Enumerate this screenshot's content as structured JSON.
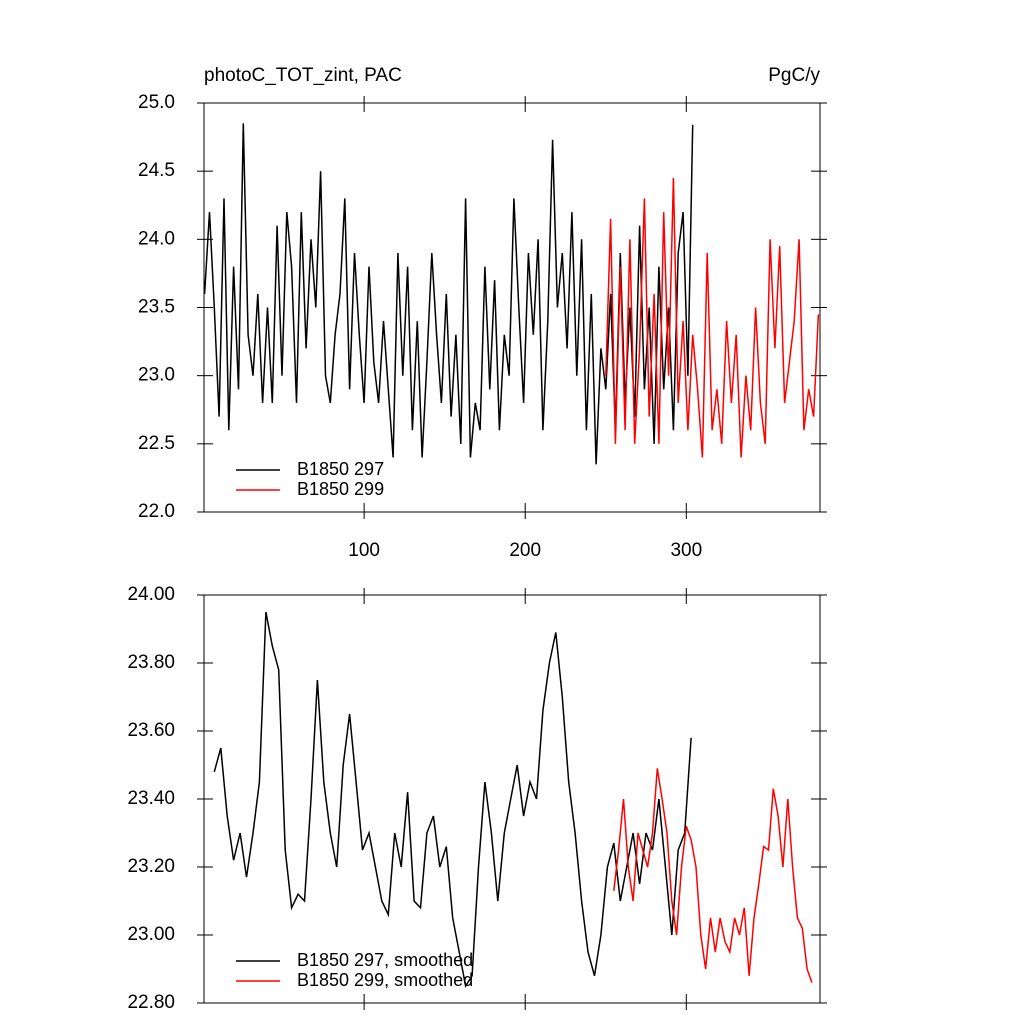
{
  "chart_data": [
    {
      "type": "line",
      "title": "photoC_TOT_zint, PAC",
      "units": "PgC/y",
      "xlim": [
        0.6,
        383
      ],
      "xticks": [
        100,
        200,
        300
      ],
      "xtick_labels": true,
      "ylim": [
        22.0,
        25.0
      ],
      "yticks": [
        {
          "value": 22.0,
          "label": "22.0"
        },
        {
          "value": 22.5,
          "label": "22.5"
        },
        {
          "value": 23.0,
          "label": "23.0"
        },
        {
          "value": 23.5,
          "label": "23.5"
        },
        {
          "value": 24.0,
          "label": "24.0"
        },
        {
          "value": 24.5,
          "label": "24.5"
        },
        {
          "value": 25.0,
          "label": "25.0"
        }
      ],
      "legend": "lower left",
      "series": [
        {
          "name": "B1850 297",
          "color": "#000000",
          "x": [
            1,
            4,
            7,
            10,
            13,
            16,
            19,
            22,
            25,
            28,
            31,
            34,
            37,
            40,
            43,
            46,
            49,
            52,
            55,
            58,
            61,
            64,
            67,
            70,
            73,
            76,
            79,
            82,
            85,
            88,
            91,
            94,
            97,
            100,
            103,
            106,
            109,
            112,
            115,
            118,
            121,
            124,
            127,
            130,
            133,
            136,
            139,
            142,
            145,
            148,
            151,
            154,
            157,
            160,
            163,
            166,
            169,
            172,
            175,
            178,
            181,
            184,
            187,
            190,
            193,
            196,
            199,
            202,
            205,
            208,
            211,
            214,
            217,
            220,
            223,
            226,
            229,
            232,
            235,
            238,
            241,
            244,
            247,
            250,
            253,
            256,
            259,
            262,
            265,
            268,
            271,
            274,
            277,
            280,
            283,
            286,
            289,
            292,
            295,
            298,
            301,
            304
          ],
          "values": [
            23.6,
            24.2,
            23.5,
            22.7,
            24.3,
            22.6,
            23.8,
            22.9,
            24.85,
            23.3,
            23.0,
            23.6,
            22.8,
            23.5,
            22.8,
            24.1,
            23.0,
            24.2,
            23.8,
            22.8,
            24.2,
            23.2,
            24.0,
            23.5,
            24.5,
            23.0,
            22.8,
            23.3,
            23.6,
            24.3,
            22.9,
            23.9,
            23.3,
            22.8,
            23.8,
            23.1,
            22.8,
            23.4,
            22.9,
            22.4,
            23.9,
            23.0,
            23.8,
            22.6,
            23.4,
            22.4,
            23.1,
            23.9,
            23.3,
            22.8,
            23.6,
            22.7,
            23.3,
            22.5,
            24.3,
            22.4,
            22.8,
            22.6,
            23.8,
            22.9,
            23.7,
            22.6,
            23.3,
            23.0,
            24.3,
            23.5,
            22.8,
            23.9,
            23.3,
            24.0,
            22.6,
            23.4,
            24.73,
            23.5,
            23.9,
            23.2,
            24.2,
            23.0,
            24.0,
            22.6,
            23.6,
            22.35,
            23.2,
            22.9,
            23.6,
            22.6,
            23.9,
            22.8,
            23.5,
            22.7,
            24.1,
            22.9,
            23.5,
            22.5,
            23.8,
            22.9,
            23.5,
            22.6,
            23.9,
            24.2,
            23.0,
            24.84
          ]
        },
        {
          "name": "B1850 299",
          "color": "#ff0000",
          "x": [
            250,
            253,
            256,
            259,
            262,
            265,
            268,
            271,
            274,
            277,
            280,
            283,
            286,
            289,
            292,
            295,
            298,
            301,
            304,
            307,
            310,
            313,
            316,
            319,
            322,
            325,
            328,
            331,
            334,
            337,
            340,
            343,
            346,
            349,
            352,
            355,
            358,
            361,
            364,
            367,
            370,
            373,
            376,
            379,
            382
          ],
          "values": [
            23.0,
            24.15,
            22.5,
            23.8,
            22.6,
            24.0,
            22.5,
            23.2,
            24.3,
            22.7,
            23.6,
            22.5,
            24.2,
            23.0,
            24.45,
            22.8,
            23.4,
            22.6,
            23.3,
            22.9,
            22.4,
            23.9,
            22.6,
            22.9,
            22.5,
            23.4,
            22.8,
            23.3,
            22.4,
            23.0,
            22.6,
            23.5,
            22.8,
            22.5,
            24.0,
            23.2,
            23.95,
            22.8,
            23.1,
            23.4,
            24.0,
            22.6,
            22.9,
            22.7,
            23.45
          ]
        }
      ]
    },
    {
      "type": "line",
      "xlim": [
        0.6,
        383
      ],
      "xticks": [
        100,
        200,
        300
      ],
      "xtick_labels": false,
      "ylim": [
        22.8,
        24.0
      ],
      "yticks": [
        {
          "value": 22.8,
          "label": "22.80"
        },
        {
          "value": 23.0,
          "label": "23.00"
        },
        {
          "value": 23.2,
          "label": "23.20"
        },
        {
          "value": 23.4,
          "label": "23.40"
        },
        {
          "value": 23.6,
          "label": "23.60"
        },
        {
          "value": 23.8,
          "label": "23.80"
        },
        {
          "value": 24.0,
          "label": "24.00"
        }
      ],
      "legend": "lower left",
      "series": [
        {
          "name": "B1850 297, smoothed",
          "color": "#000000",
          "x": [
            7,
            11,
            15,
            19,
            23,
            27,
            31,
            35,
            39,
            43,
            47,
            51,
            55,
            59,
            63,
            67,
            71,
            75,
            79,
            83,
            87,
            91,
            95,
            99,
            103,
            107,
            111,
            115,
            119,
            123,
            127,
            131,
            135,
            139,
            143,
            147,
            151,
            155,
            159,
            163,
            167,
            171,
            175,
            179,
            183,
            187,
            191,
            195,
            199,
            203,
            207,
            211,
            215,
            219,
            223,
            227,
            231,
            235,
            239,
            243,
            247,
            251,
            255,
            259,
            263,
            267,
            271,
            275,
            279,
            283,
            287,
            291,
            295,
            299,
            303
          ],
          "values": [
            23.48,
            23.55,
            23.35,
            23.22,
            23.3,
            23.17,
            23.3,
            23.45,
            23.95,
            23.85,
            23.78,
            23.25,
            23.08,
            23.12,
            23.1,
            23.4,
            23.75,
            23.45,
            23.3,
            23.2,
            23.5,
            23.65,
            23.45,
            23.25,
            23.3,
            23.2,
            23.1,
            23.06,
            23.3,
            23.2,
            23.42,
            23.1,
            23.08,
            23.3,
            23.35,
            23.2,
            23.26,
            23.05,
            22.95,
            22.85,
            22.88,
            23.2,
            23.45,
            23.3,
            23.1,
            23.3,
            23.4,
            23.5,
            23.35,
            23.45,
            23.4,
            23.66,
            23.8,
            23.89,
            23.7,
            23.45,
            23.3,
            23.1,
            22.95,
            22.88,
            23.0,
            23.2,
            23.27,
            23.1,
            23.2,
            23.3,
            23.15,
            23.3,
            23.25,
            23.4,
            23.2,
            23.0,
            23.25,
            23.3,
            23.58
          ]
        },
        {
          "name": "B1850 299, smoothed",
          "color": "#ff0000",
          "x": [
            255,
            258,
            261,
            264,
            267,
            270,
            273,
            276,
            279,
            282,
            285,
            288,
            291,
            294,
            297,
            300,
            303,
            306,
            309,
            312,
            315,
            318,
            321,
            324,
            327,
            330,
            333,
            336,
            339,
            342,
            345,
            348,
            351,
            354,
            357,
            360,
            363,
            366,
            369,
            372,
            375,
            378
          ],
          "values": [
            23.13,
            23.25,
            23.4,
            23.2,
            23.1,
            23.3,
            23.25,
            23.2,
            23.3,
            23.49,
            23.4,
            23.3,
            23.1,
            23.0,
            23.2,
            23.32,
            23.28,
            23.2,
            23.0,
            22.9,
            23.05,
            22.95,
            23.05,
            22.98,
            22.95,
            23.05,
            23.0,
            23.08,
            22.88,
            23.05,
            23.15,
            23.26,
            23.25,
            23.43,
            23.35,
            23.2,
            23.4,
            23.2,
            23.05,
            23.02,
            22.9,
            22.86
          ]
        }
      ]
    }
  ]
}
